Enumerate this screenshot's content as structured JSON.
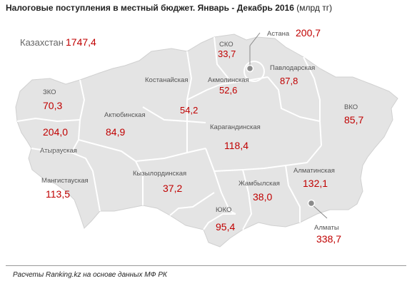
{
  "title": {
    "main": "Налоговые поступления в местный бюджет. Январь - Декабрь 2016",
    "unit": "(млрд тг)"
  },
  "total": {
    "label": "Казахстан",
    "value": "1747,4"
  },
  "regions": {
    "sko": {
      "label": "СКО",
      "value": "33,7"
    },
    "astana": {
      "label": "Астана",
      "value": "200,7"
    },
    "zko": {
      "label": "ЗКО",
      "value": "70,3"
    },
    "kostanay": {
      "label": "Костанайская",
      "value": "54,2"
    },
    "akmola": {
      "label": "Акмолинская",
      "value": "52,6"
    },
    "pavlodar": {
      "label": "Павлодарская",
      "value": "87,8"
    },
    "vko": {
      "label": "ВКО",
      "value": "85,7"
    },
    "aktobe": {
      "label": "Актюбинская",
      "value": "84,9"
    },
    "atyrau": {
      "label": "Атырауская",
      "value": "204,0"
    },
    "karaganda": {
      "label": "Карагандинская",
      "value": "118,4"
    },
    "mangystau": {
      "label": "Мангистауская",
      "value": "113,5"
    },
    "kyzylorda": {
      "label": "Кызылординская",
      "value": "37,2"
    },
    "zhambyl": {
      "label": "Жамбылская",
      "value": "38,0"
    },
    "almaty_obl": {
      "label": "Алматинская",
      "value": "132,1"
    },
    "yuko": {
      "label": "ЮКО",
      "value": "95,4"
    },
    "almaty": {
      "label": "Алматы",
      "value": "338,7"
    }
  },
  "source": "Расчеты Ranking.kz на основе данных МФ РК",
  "colors": {
    "value": "#c00000",
    "land": "#e4e4e4",
    "border": "#ffffff",
    "marker": "#888888"
  }
}
